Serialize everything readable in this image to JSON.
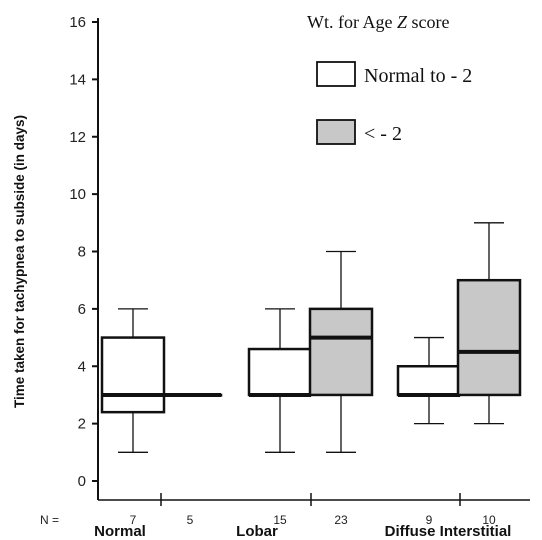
{
  "chart_data": {
    "type": "boxplot",
    "ylabel": "Time taken for tachypnea to subside (in days)",
    "ylim": [
      0,
      16
    ],
    "yticks": [
      0,
      2,
      4,
      6,
      8,
      10,
      12,
      14,
      16
    ],
    "n_label": "N =",
    "legend": {
      "title_prefix": "Wt. for Age ",
      "title_italic": "Z",
      "title_suffix": " score",
      "entries": [
        {
          "label": "Normal to - 2",
          "color": "#ffffff"
        },
        {
          "label": "< - 2",
          "color": "#c8c8c8"
        }
      ],
      "placement": "top-right"
    },
    "categories": [
      "Normal",
      "Lobar",
      "Diffuse Interstitial"
    ],
    "series": [
      {
        "name": "Normal to - 2",
        "color": "#ffffff",
        "boxes": [
          {
            "category": "Normal",
            "n": "7",
            "min": 1,
            "q1": 2.4,
            "median": 3,
            "q3": 5,
            "max": 6
          },
          {
            "category": "Lobar",
            "n": "15",
            "min": 1,
            "q1": 3,
            "median": 3,
            "q3": 4.6,
            "max": 6
          },
          {
            "category": "Diffuse Interstitial",
            "n": "9",
            "min": 2,
            "q1": 3,
            "median": 3,
            "q3": 4,
            "max": 5
          }
        ]
      },
      {
        "name": "< - 2",
        "color": "#c8c8c8",
        "boxes": [
          {
            "category": "Normal",
            "n": "5",
            "min": 3,
            "q1": 3,
            "median": 3,
            "q3": 3,
            "max": 3
          },
          {
            "category": "Lobar",
            "n": "23",
            "min": 1,
            "q1": 3,
            "median": 5,
            "q3": 6,
            "max": 8
          },
          {
            "category": "Diffuse Interstitial",
            "n": "10",
            "min": 2,
            "q1": 3,
            "median": 4.5,
            "q3": 7,
            "max": 9
          }
        ]
      }
    ]
  }
}
